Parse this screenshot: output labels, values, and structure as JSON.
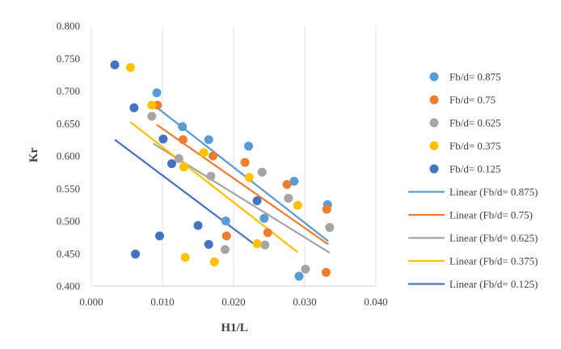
{
  "chart_data": {
    "type": "scatter",
    "xlabel": "H1/L",
    "ylabel": "Kr",
    "xlim": [
      0,
      0.04
    ],
    "ylim": [
      0.4,
      0.8
    ],
    "x_ticks": [
      "0.000",
      "0.010",
      "0.020",
      "0.030",
      "0.040"
    ],
    "y_ticks": [
      "0.400",
      "0.450",
      "0.500",
      "0.550",
      "0.600",
      "0.650",
      "0.700",
      "0.750",
      "0.800"
    ],
    "grid": "vertical",
    "legend_position": "right",
    "series": [
      {
        "name": "Fb/d= 0.875",
        "color": "#5B9BD5",
        "points": [
          [
            0.0092,
            0.697
          ],
          [
            0.0128,
            0.645
          ],
          [
            0.0165,
            0.625
          ],
          [
            0.0221,
            0.615
          ],
          [
            0.0189,
            0.5
          ],
          [
            0.0243,
            0.504
          ],
          [
            0.0285,
            0.561
          ],
          [
            0.0332,
            0.525
          ],
          [
            0.0292,
            0.415
          ]
        ]
      },
      {
        "name": "Fb/d= 0.75",
        "color": "#ED7D31",
        "points": [
          [
            0.0093,
            0.678
          ],
          [
            0.0129,
            0.625
          ],
          [
            0.0171,
            0.6
          ],
          [
            0.0216,
            0.59
          ],
          [
            0.019,
            0.477
          ],
          [
            0.0248,
            0.482
          ],
          [
            0.0275,
            0.556
          ],
          [
            0.0331,
            0.518
          ],
          [
            0.033,
            0.421
          ]
        ]
      },
      {
        "name": "Fb/d= 0.625",
        "color": "#A5A5A5",
        "points": [
          [
            0.0085,
            0.661
          ],
          [
            0.0123,
            0.596
          ],
          [
            0.0168,
            0.569
          ],
          [
            0.024,
            0.575
          ],
          [
            0.0188,
            0.456
          ],
          [
            0.0244,
            0.463
          ],
          [
            0.0277,
            0.535
          ],
          [
            0.0335,
            0.49
          ],
          [
            0.0301,
            0.426
          ]
        ]
      },
      {
        "name": "Fb/d= 0.375",
        "color": "#FFC000",
        "points": [
          [
            0.0055,
            0.736
          ],
          [
            0.0085,
            0.678
          ],
          [
            0.013,
            0.583
          ],
          [
            0.0158,
            0.605
          ],
          [
            0.0222,
            0.567
          ],
          [
            0.0233,
            0.465
          ],
          [
            0.0173,
            0.437
          ],
          [
            0.0132,
            0.444
          ],
          [
            0.029,
            0.524
          ]
        ]
      },
      {
        "name": "Fb/d= 0.125",
        "color": "#4472C4",
        "points": [
          [
            0.0033,
            0.74
          ],
          [
            0.006,
            0.674
          ],
          [
            0.0101,
            0.626
          ],
          [
            0.0113,
            0.588
          ],
          [
            0.015,
            0.493
          ],
          [
            0.0165,
            0.464
          ],
          [
            0.0233,
            0.531
          ],
          [
            0.0096,
            0.477
          ],
          [
            0.0062,
            0.449
          ]
        ]
      }
    ],
    "trendlines": [
      {
        "name": "Linear (Fb/d= 0.875)",
        "color": "#5B9BD5",
        "x": [
          0.0088,
          0.0333
        ],
        "y": [
          0.678,
          0.469
        ]
      },
      {
        "name": "Linear (Fb/d= 0.75)",
        "color": "#ED7D31",
        "x": [
          0.0092,
          0.0333
        ],
        "y": [
          0.648,
          0.464
        ]
      },
      {
        "name": "Linear (Fb/d= 0.625)",
        "color": "#A5A5A5",
        "x": [
          0.0087,
          0.0335
        ],
        "y": [
          0.619,
          0.451
        ]
      },
      {
        "name": "Linear (Fb/d= 0.375)",
        "color": "#FFC000",
        "x": [
          0.0055,
          0.029
        ],
        "y": [
          0.652,
          0.452
        ]
      },
      {
        "name": "Linear (Fb/d= 0.125)",
        "color": "#4472C4",
        "x": [
          0.0033,
          0.0233
        ],
        "y": [
          0.625,
          0.461
        ]
      }
    ]
  }
}
